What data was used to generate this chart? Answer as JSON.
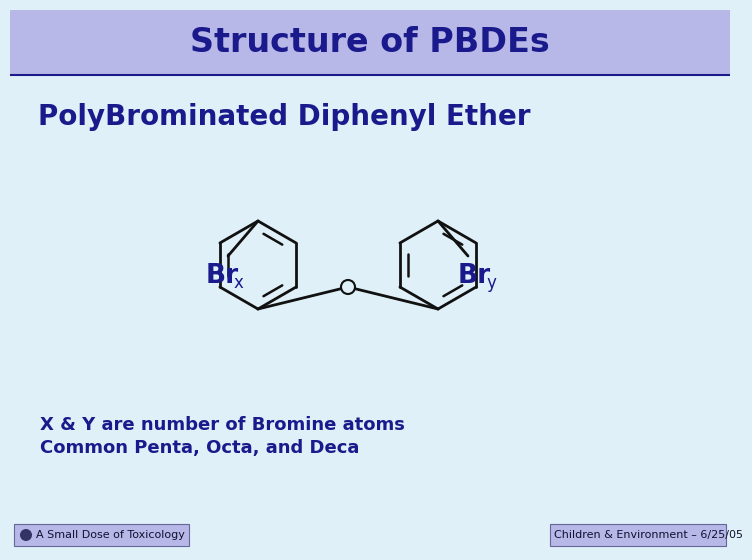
{
  "title": "Structure of PBDEs",
  "title_bg_color": "#b8b8e8",
  "slide_bg_color": "#dff0f8",
  "title_text_color": "#1a1a8c",
  "body_text_color": "#1a1a8c",
  "ring_color": "#111111",
  "subtitle": "PolyBrominated Diphenyl Ether",
  "description_line1": "X & Y are number of Bromine atoms",
  "description_line2": "Common Penta, Octa, and Deca",
  "footer_left": "A Small Dose of Toxicology",
  "footer_right": "Children & Environment – 6/25/05",
  "title_fontsize": 24,
  "subtitle_fontsize": 20,
  "body_fontsize": 13,
  "footer_fontsize": 8,
  "title_bar_height": 65,
  "title_border_color": "#1a1a8c"
}
